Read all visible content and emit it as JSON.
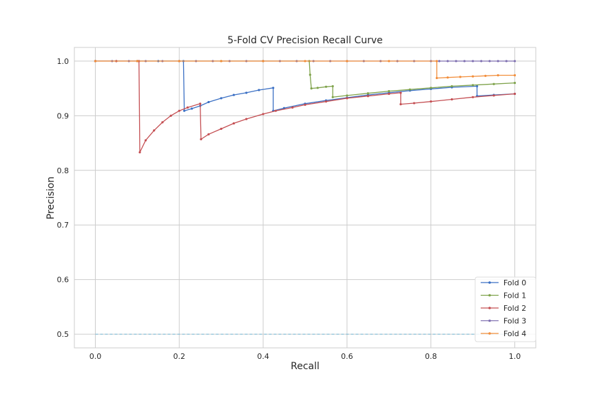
{
  "chart_data": {
    "type": "line",
    "title": "5-Fold CV Precision Recall Curve",
    "xlabel": "Recall",
    "ylabel": "Precision",
    "xlim": [
      -0.05,
      1.05
    ],
    "ylim": [
      0.475,
      1.025
    ],
    "xticks": [
      "0.0",
      "0.2",
      "0.4",
      "0.6",
      "0.8",
      "1.0"
    ],
    "xtick_values": [
      0.0,
      0.2,
      0.4,
      0.6,
      0.8,
      1.0
    ],
    "yticks": [
      "0.5",
      "0.6",
      "0.7",
      "0.8",
      "0.9",
      "1.0"
    ],
    "ytick_values": [
      0.5,
      0.6,
      0.7,
      0.8,
      0.9,
      1.0
    ],
    "grid": true,
    "legend_position": "lower-right",
    "baseline": {
      "y": 0.5,
      "style": "dashed",
      "color": "#6fb7d6"
    },
    "series": [
      {
        "name": "Fold 0",
        "color": "#3a6fc4",
        "points": [
          [
            0.0,
            1.0
          ],
          [
            0.05,
            1.0
          ],
          [
            0.1,
            1.0
          ],
          [
            0.15,
            1.0
          ],
          [
            0.21,
            1.0
          ],
          [
            0.212,
            0.909
          ],
          [
            0.23,
            0.913
          ],
          [
            0.25,
            0.918
          ],
          [
            0.27,
            0.925
          ],
          [
            0.3,
            0.932
          ],
          [
            0.33,
            0.938
          ],
          [
            0.36,
            0.942
          ],
          [
            0.39,
            0.947
          ],
          [
            0.424,
            0.951
          ],
          [
            0.424,
            0.909
          ],
          [
            0.45,
            0.914
          ],
          [
            0.5,
            0.922
          ],
          [
            0.55,
            0.928
          ],
          [
            0.6,
            0.933
          ],
          [
            0.65,
            0.938
          ],
          [
            0.7,
            0.942
          ],
          [
            0.75,
            0.946
          ],
          [
            0.8,
            0.949
          ],
          [
            0.85,
            0.952
          ],
          [
            0.91,
            0.954
          ],
          [
            0.91,
            0.936
          ],
          [
            0.95,
            0.938
          ],
          [
            1.0,
            0.94
          ]
        ]
      },
      {
        "name": "Fold 1",
        "color": "#7ea24a",
        "points": [
          [
            0.0,
            1.0
          ],
          [
            0.1,
            1.0
          ],
          [
            0.2,
            1.0
          ],
          [
            0.3,
            1.0
          ],
          [
            0.4,
            1.0
          ],
          [
            0.51,
            1.0
          ],
          [
            0.512,
            0.975
          ],
          [
            0.515,
            0.95
          ],
          [
            0.53,
            0.951
          ],
          [
            0.55,
            0.953
          ],
          [
            0.566,
            0.954
          ],
          [
            0.566,
            0.934
          ],
          [
            0.6,
            0.937
          ],
          [
            0.65,
            0.941
          ],
          [
            0.7,
            0.945
          ],
          [
            0.75,
            0.948
          ],
          [
            0.8,
            0.951
          ],
          [
            0.85,
            0.954
          ],
          [
            0.9,
            0.956
          ],
          [
            0.95,
            0.958
          ],
          [
            1.0,
            0.96
          ]
        ]
      },
      {
        "name": "Fold 2",
        "color": "#c44e52",
        "points": [
          [
            0.0,
            1.0
          ],
          [
            0.05,
            1.0
          ],
          [
            0.104,
            1.0
          ],
          [
            0.106,
            0.833
          ],
          [
            0.12,
            0.855
          ],
          [
            0.14,
            0.873
          ],
          [
            0.16,
            0.888
          ],
          [
            0.18,
            0.9
          ],
          [
            0.2,
            0.909
          ],
          [
            0.22,
            0.915
          ],
          [
            0.25,
            0.922
          ],
          [
            0.252,
            0.857
          ],
          [
            0.27,
            0.866
          ],
          [
            0.3,
            0.876
          ],
          [
            0.33,
            0.886
          ],
          [
            0.36,
            0.894
          ],
          [
            0.4,
            0.903
          ],
          [
            0.43,
            0.909
          ],
          [
            0.47,
            0.915
          ],
          [
            0.5,
            0.92
          ],
          [
            0.55,
            0.926
          ],
          [
            0.6,
            0.932
          ],
          [
            0.65,
            0.936
          ],
          [
            0.7,
            0.94
          ],
          [
            0.728,
            0.942
          ],
          [
            0.728,
            0.921
          ],
          [
            0.76,
            0.923
          ],
          [
            0.8,
            0.926
          ],
          [
            0.85,
            0.93
          ],
          [
            0.9,
            0.934
          ],
          [
            0.95,
            0.937
          ],
          [
            1.0,
            0.94
          ]
        ]
      },
      {
        "name": "Fold 3",
        "color": "#8172b2",
        "points": [
          [
            0.0,
            1.0
          ],
          [
            0.04,
            1.0
          ],
          [
            0.08,
            1.0
          ],
          [
            0.12,
            1.0
          ],
          [
            0.16,
            1.0
          ],
          [
            0.2,
            1.0
          ],
          [
            0.24,
            1.0
          ],
          [
            0.28,
            1.0
          ],
          [
            0.32,
            1.0
          ],
          [
            0.36,
            1.0
          ],
          [
            0.4,
            1.0
          ],
          [
            0.44,
            1.0
          ],
          [
            0.48,
            1.0
          ],
          [
            0.52,
            1.0
          ],
          [
            0.56,
            1.0
          ],
          [
            0.6,
            1.0
          ],
          [
            0.64,
            1.0
          ],
          [
            0.68,
            1.0
          ],
          [
            0.72,
            1.0
          ],
          [
            0.76,
            1.0
          ],
          [
            0.8,
            1.0
          ],
          [
            0.82,
            1.0
          ],
          [
            0.84,
            1.0
          ],
          [
            0.86,
            1.0
          ],
          [
            0.88,
            1.0
          ],
          [
            0.9,
            1.0
          ],
          [
            0.92,
            1.0
          ],
          [
            0.94,
            1.0
          ],
          [
            0.96,
            1.0
          ],
          [
            0.98,
            1.0
          ],
          [
            1.0,
            1.0
          ]
        ]
      },
      {
        "name": "Fold 4",
        "color": "#f28e3b",
        "points": [
          [
            0.0,
            1.0
          ],
          [
            0.1,
            1.0
          ],
          [
            0.2,
            1.0
          ],
          [
            0.3,
            1.0
          ],
          [
            0.4,
            1.0
          ],
          [
            0.5,
            1.0
          ],
          [
            0.6,
            1.0
          ],
          [
            0.7,
            1.0
          ],
          [
            0.814,
            1.0
          ],
          [
            0.814,
            0.969
          ],
          [
            0.84,
            0.97
          ],
          [
            0.87,
            0.971
          ],
          [
            0.9,
            0.972
          ],
          [
            0.93,
            0.973
          ],
          [
            0.96,
            0.974
          ],
          [
            1.0,
            0.974
          ]
        ]
      }
    ]
  }
}
